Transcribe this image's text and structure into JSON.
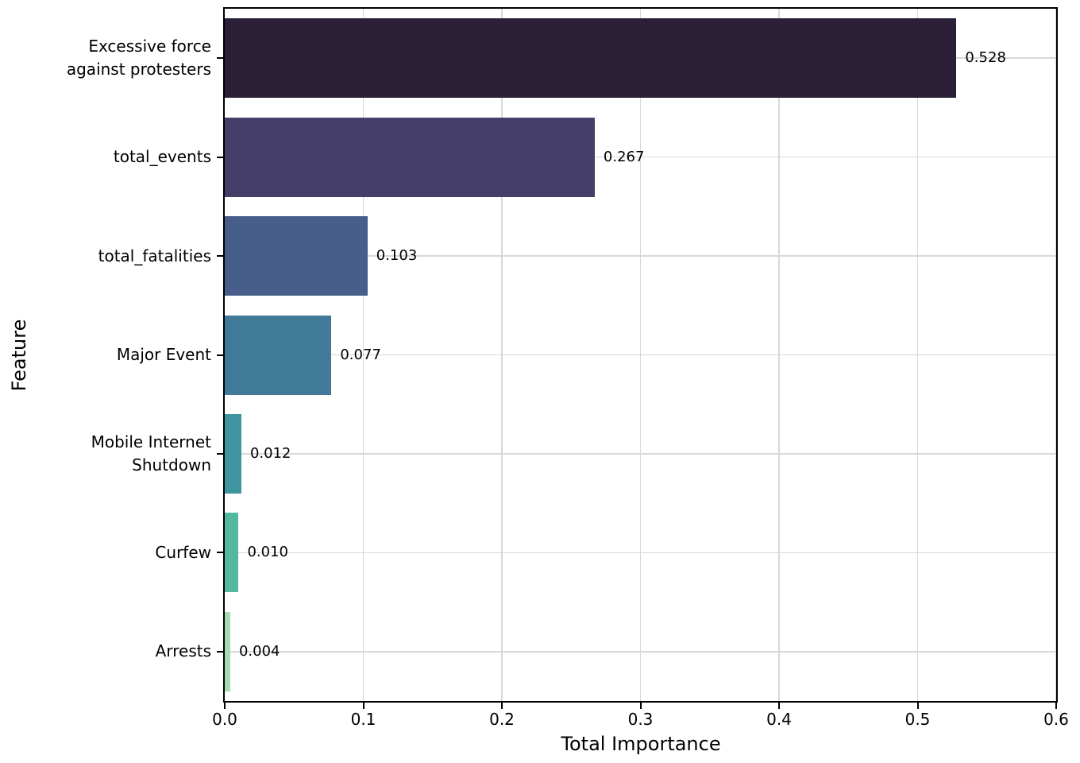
{
  "chart_data": {
    "type": "bar",
    "orientation": "horizontal",
    "title": "",
    "xlabel": "Total Importance",
    "ylabel": "Feature",
    "categories": [
      "Excessive force\nagainst protesters",
      "total_events",
      "total_fatalities",
      "Major Event",
      "Mobile Internet\nShutdown",
      "Curfew",
      "Arrests"
    ],
    "values": [
      0.528,
      0.267,
      0.103,
      0.077,
      0.012,
      0.01,
      0.004
    ],
    "value_labels": [
      "0.528",
      "0.267",
      "0.103",
      "0.077",
      "0.012",
      "0.010",
      "0.004"
    ],
    "bar_colors": [
      "#2b2038",
      "#443e69",
      "#475e8b",
      "#417a99",
      "#3e959e",
      "#54b7a0",
      "#a7d9b3"
    ],
    "xlim": [
      0,
      0.6
    ],
    "xtick_values": [
      0,
      0.1,
      0.2,
      0.3,
      0.4,
      0.5,
      0.6
    ],
    "xtick_labels": [
      "0.0",
      "0.1",
      "0.2",
      "0.3",
      "0.4",
      "0.5",
      "0.6"
    ],
    "grid": true,
    "legend": "none",
    "grid_color": "#d8d8d8",
    "axis_color": "#000000",
    "text_color": "#000000",
    "background_color": "#ffffff"
  }
}
